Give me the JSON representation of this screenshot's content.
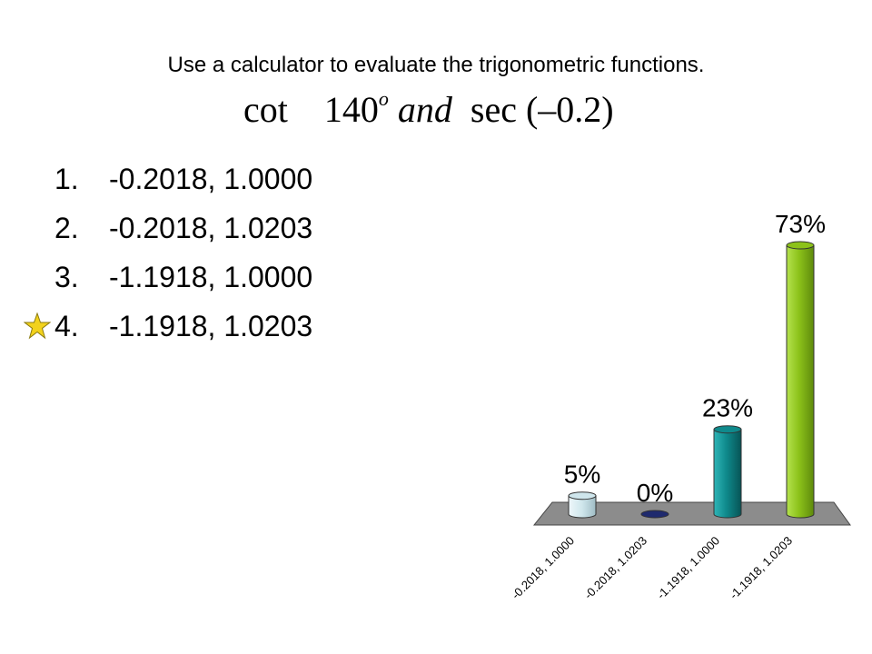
{
  "slide": {
    "title": "Use a calculator to evaluate the trigonometric functions.",
    "formula": {
      "cot": "cot",
      "angle": "140",
      "degree": "o",
      "and": "and",
      "sec": "sec",
      "arg": "(–0.2)"
    }
  },
  "choices": [
    {
      "num": "1.",
      "text": "-0.2018, 1.0000",
      "correct": false
    },
    {
      "num": "2.",
      "text": "-0.2018, 1.0203",
      "correct": false
    },
    {
      "num": "3.",
      "text": "-1.1918, 1.0000",
      "correct": false
    },
    {
      "num": "4.",
      "text": "-1.1918, 1.0203",
      "correct": true
    }
  ],
  "marker_icon": "star-icon",
  "chart_data": {
    "type": "bar",
    "categories": [
      "-0.2018, 1.0000",
      "-0.2018, 1.0203",
      "-1.1918, 1.0000",
      "-1.1918, 1.0203"
    ],
    "values": [
      5,
      0,
      23,
      73
    ],
    "data_labels": [
      "5%",
      "0%",
      "23%",
      "73%"
    ],
    "colors": [
      "#cfe6ec",
      "#1f2a6e",
      "#0f8a8c",
      "#8cc21a"
    ],
    "floor_color": "#8c8c8c",
    "ylim": [
      0,
      73
    ],
    "grid": false,
    "style": "3d-cylinder"
  }
}
